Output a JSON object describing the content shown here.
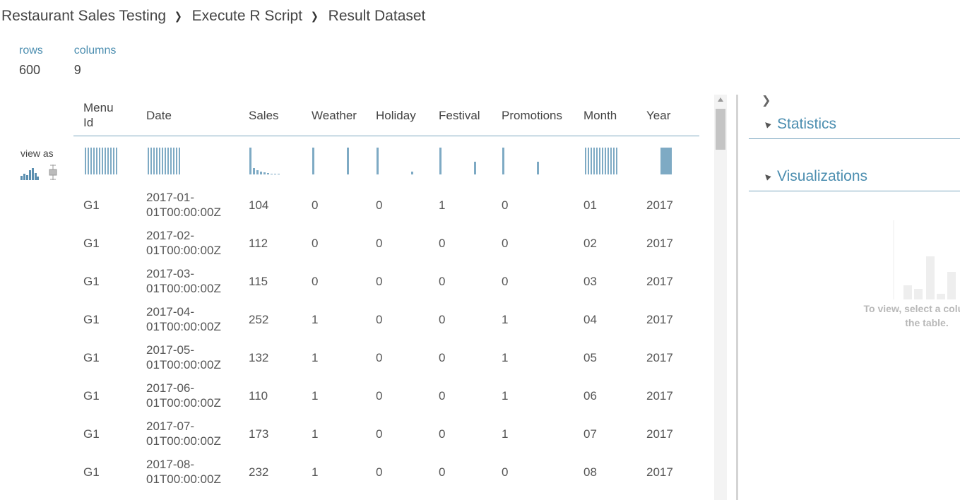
{
  "breadcrumb": [
    "Restaurant Sales Testing",
    "Execute R Script",
    "Result Dataset"
  ],
  "stats": {
    "rows_label": "rows",
    "rows_value": "600",
    "columns_label": "columns",
    "columns_value": "9"
  },
  "view_as": {
    "label": "view as",
    "icons": [
      "histogram-icon",
      "boxplot-icon"
    ]
  },
  "table": {
    "columns": [
      "Menu Id",
      "Date",
      "Sales",
      "Weather",
      "Holiday",
      "Festival",
      "Promotions",
      "Month",
      "Year"
    ],
    "rows": [
      [
        "G1",
        "2017-01-01T00:00:00Z",
        "104",
        "0",
        "0",
        "1",
        "0",
        "01",
        "2017"
      ],
      [
        "G1",
        "2017-02-01T00:00:00Z",
        "112",
        "0",
        "0",
        "0",
        "0",
        "02",
        "2017"
      ],
      [
        "G1",
        "2017-03-01T00:00:00Z",
        "115",
        "0",
        "0",
        "0",
        "0",
        "03",
        "2017"
      ],
      [
        "G1",
        "2017-04-01T00:00:00Z",
        "252",
        "1",
        "0",
        "0",
        "1",
        "04",
        "2017"
      ],
      [
        "G1",
        "2017-05-01T00:00:00Z",
        "132",
        "1",
        "0",
        "0",
        "1",
        "05",
        "2017"
      ],
      [
        "G1",
        "2017-06-01T00:00:00Z",
        "110",
        "1",
        "0",
        "0",
        "1",
        "06",
        "2017"
      ],
      [
        "G1",
        "2017-07-01T00:00:00Z",
        "173",
        "1",
        "0",
        "0",
        "1",
        "07",
        "2017"
      ],
      [
        "G1",
        "2017-08-01T00:00:00Z",
        "232",
        "1",
        "0",
        "0",
        "0",
        "08",
        "2017"
      ]
    ]
  },
  "right_panel": {
    "sections": [
      "Statistics",
      "Visualizations"
    ],
    "hint": "To view, select a column in the table."
  },
  "colors": {
    "accent": "#4c8eb0",
    "bar": "#7eaac4"
  }
}
